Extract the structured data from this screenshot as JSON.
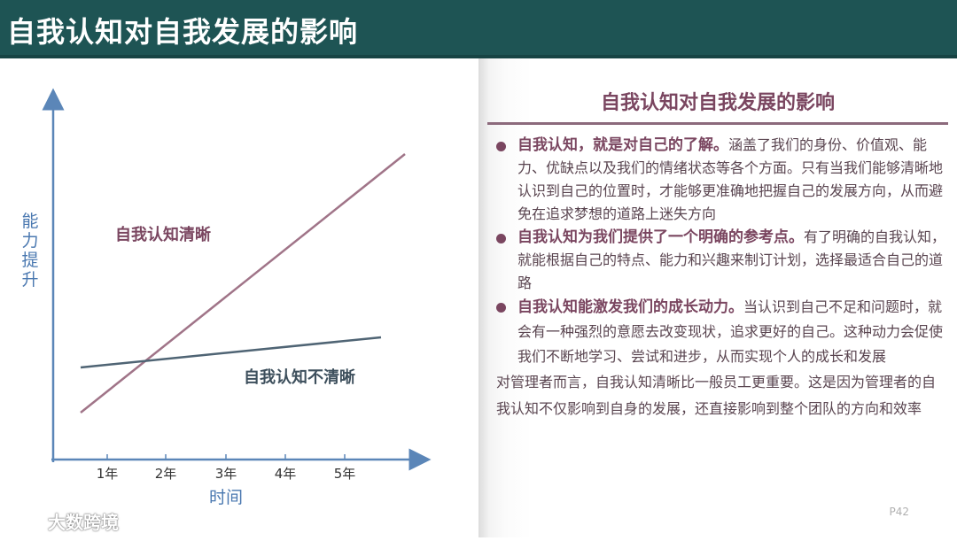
{
  "header": {
    "title": "自我认知对自我发展的影响"
  },
  "diagram": {
    "y_axis_label": "能力提升",
    "x_axis_label": "时间",
    "x_ticks": [
      "1年",
      "2年",
      "3年",
      "4年",
      "5年"
    ],
    "line_clear_label": "自我认知清晰",
    "line_unclear_label": "自我认知不清晰",
    "colors": {
      "clear": "#a07488",
      "unclear": "#4f6474",
      "axis": "#5b86b8"
    }
  },
  "panel": {
    "title": "自我认知对自我发展的影响",
    "bullets": [
      {
        "head": "自我认知，就是对自己的了解。",
        "body": "涵盖了我们的身份、价值观、能力、优缺点以及我们的情绪状态等各个方面。只有当我们能够清晰地认识到自己的位置时，才能够更准确地把握自己的发展方向，从而避免在追求梦想的道路上迷失方向"
      },
      {
        "head": "自我认知为我们提供了一个明确的参考点。",
        "body": "有了明确的自我认知，就能根据自己的特点、能力和兴趣来制订计划，选择最适合自己的道路"
      },
      {
        "head": "自我认知能激发我们的成长动力。",
        "body": "当认识到自己不足和问题时，就会有一种强烈的意愿去改变现状，追求更好的自己。这种动力会促使我们不断地学习、尝试和进步，从而实现个人的成长和发展"
      }
    ],
    "closing": "对管理者而言，自我认知清晰比一般员工更重要。这是因为管理者的自我认知不仅影响到自身的发展，还直接影响到整个团队的方向和效率",
    "page_number": "P42"
  },
  "watermark": {
    "text": "大数跨境"
  }
}
